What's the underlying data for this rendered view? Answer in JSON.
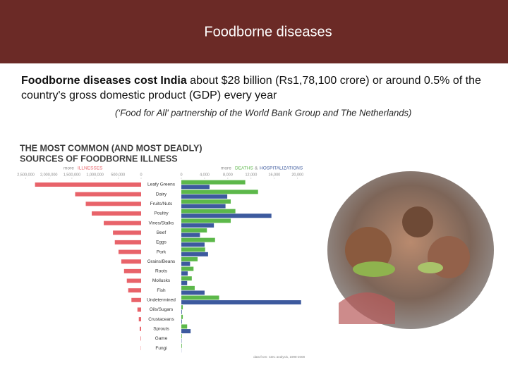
{
  "header": {
    "title": "Foodborne diseases"
  },
  "body": {
    "text_bold": "Foodborne diseases cost India",
    "text": " about $28 billion (Rs1,78,100 crore) or around 0.5% of the country's gross domestic product (GDP) every year",
    "citation": "(‘Food for All' partnership of the World Bank Group and The Netherlands)"
  },
  "chart_data": {
    "type": "butterfly-bar",
    "title": "THE MOST COMMON (AND MOST DEADLY)",
    "subtitle": "SOURCES OF FOODBORNE ILLNESS",
    "more_label": "more",
    "joiner": "&",
    "source": "data from: CDC analysis, 1998-2008",
    "categories": [
      "Leafy Greens",
      "Dairy",
      "Fruits/Nuts",
      "Poultry",
      "Vines/Stalks",
      "Beef",
      "Eggs",
      "Pork",
      "Grains/Beans",
      "Roots",
      "Mollusks",
      "Fish",
      "Undetermined",
      "Oils/Sugars",
      "Crustaceans",
      "Sprouts",
      "Game",
      "Fungi"
    ],
    "series": [
      {
        "name": "ILLNESSES",
        "color": "#e8636a",
        "axis": "left",
        "values": [
          2300000,
          1430000,
          1200000,
          1070000,
          810000,
          610000,
          570000,
          490000,
          430000,
          370000,
          310000,
          280000,
          210000,
          80000,
          50000,
          30000,
          10000,
          5000
        ]
      },
      {
        "name": "DEATHS",
        "color": "#5cb84a",
        "axis": "right",
        "values": [
          11000,
          13200,
          8500,
          9300,
          8500,
          4400,
          5800,
          4100,
          2800,
          2100,
          1800,
          2300,
          6500,
          250,
          250,
          1000,
          100,
          100
        ]
      },
      {
        "name": "HOSPITALIZATIONS",
        "color": "#3d5a9e",
        "axis": "right",
        "values": [
          4850,
          7900,
          7600,
          15500,
          5600,
          3200,
          4000,
          4600,
          1500,
          1100,
          1000,
          4000,
          20600,
          100,
          100,
          1600,
          50,
          20
        ]
      }
    ],
    "xlim_left": [
      0,
      2600000
    ],
    "xticks_left": [
      {
        "value": 2500000,
        "label": "2,500,000"
      },
      {
        "value": 2000000,
        "label": "2,000,000"
      },
      {
        "value": 1500000,
        "label": "1,500,000"
      },
      {
        "value": 1000000,
        "label": "1,000,000"
      },
      {
        "value": 500000,
        "label": "500,000"
      },
      0
    ],
    "xlim_right": [
      0,
      21000
    ],
    "xticks_right": [
      0,
      {
        "value": 4000,
        "label": "4,000"
      },
      {
        "value": 8000,
        "label": "8,000"
      },
      {
        "value": 12000,
        "label": "12,000"
      },
      {
        "value": 16000,
        "label": "16,000"
      },
      {
        "value": 20000,
        "label": "20,000"
      }
    ]
  }
}
